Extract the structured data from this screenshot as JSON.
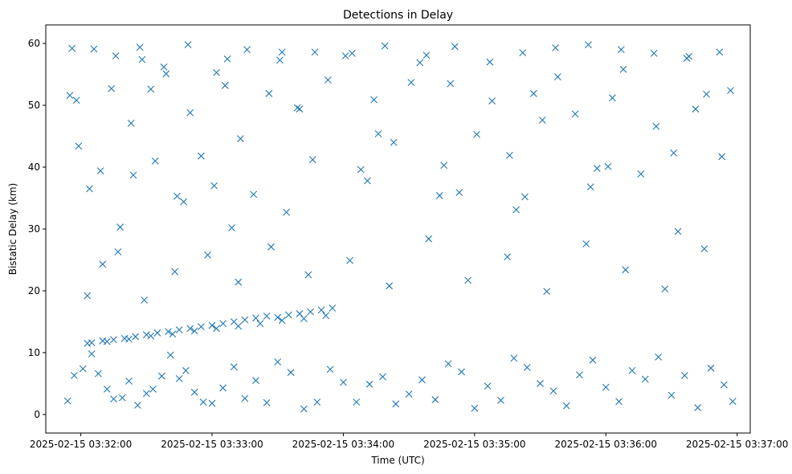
{
  "chart_data": {
    "type": "scatter",
    "title": "Detections in Delay",
    "xlabel": "Time (UTC)",
    "ylabel": "Bistatic Delay (km)",
    "x_ticks": [
      "2025-02-15 03:32:00",
      "2025-02-15 03:33:00",
      "2025-02-15 03:34:00",
      "2025-02-15 03:35:00",
      "2025-02-15 03:36:00",
      "2025-02-15 03:37:00"
    ],
    "y_ticks": [
      0,
      10,
      20,
      30,
      40,
      50,
      60
    ],
    "xlim": [
      "2025-02-15 03:31:44",
      "2025-02-15 03:37:06"
    ],
    "ylim": [
      -3,
      63
    ],
    "grid": false,
    "marker": "x",
    "marker_color": "#1f77b4",
    "series": [
      {
        "x": [
          "2025-02-15 03:31:54",
          "2025-02-15 03:31:57",
          "2025-02-15 03:32:01",
          "2025-02-15 03:32:05",
          "2025-02-15 03:32:08",
          "2025-02-15 03:32:12",
          "2025-02-15 03:32:15",
          "2025-02-15 03:32:19",
          "2025-02-15 03:32:22",
          "2025-02-15 03:32:26",
          "2025-02-15 03:32:30",
          "2025-02-15 03:32:33",
          "2025-02-15 03:32:37",
          "2025-02-15 03:32:41",
          "2025-02-15 03:32:45",
          "2025-02-15 03:32:48",
          "2025-02-15 03:32:52",
          "2025-02-15 03:32:56",
          "2025-02-15 03:33:00",
          "2025-02-15 03:33:05",
          "2025-02-15 03:33:10",
          "2025-02-15 03:33:15",
          "2025-02-15 03:33:20",
          "2025-02-15 03:33:25",
          "2025-02-15 03:33:30",
          "2025-02-15 03:33:36",
          "2025-02-15 03:33:42",
          "2025-02-15 03:33:48",
          "2025-02-15 03:33:54",
          "2025-02-15 03:34:00",
          "2025-02-15 03:34:06",
          "2025-02-15 03:34:12",
          "2025-02-15 03:34:18",
          "2025-02-15 03:34:24",
          "2025-02-15 03:34:30",
          "2025-02-15 03:34:36",
          "2025-02-15 03:34:42",
          "2025-02-15 03:34:48",
          "2025-02-15 03:34:54",
          "2025-02-15 03:35:00",
          "2025-02-15 03:35:06",
          "2025-02-15 03:35:12",
          "2025-02-15 03:35:18",
          "2025-02-15 03:35:24",
          "2025-02-15 03:35:30",
          "2025-02-15 03:35:36",
          "2025-02-15 03:35:42",
          "2025-02-15 03:35:48",
          "2025-02-15 03:35:54",
          "2025-02-15 03:36:00",
          "2025-02-15 03:36:06",
          "2025-02-15 03:36:12",
          "2025-02-15 03:36:18",
          "2025-02-15 03:36:24",
          "2025-02-15 03:36:30",
          "2025-02-15 03:36:36",
          "2025-02-15 03:36:42",
          "2025-02-15 03:36:48",
          "2025-02-15 03:36:54",
          "2025-02-15 03:36:58",
          "2025-02-15 03:32:03",
          "2025-02-15 03:32:17",
          "2025-02-15 03:32:29",
          "2025-02-15 03:32:43",
          "2025-02-15 03:32:58",
          "2025-02-15 03:33:12",
          "2025-02-15 03:33:27",
          "2025-02-15 03:33:44",
          "2025-02-15 03:34:03",
          "2025-02-15 03:34:21",
          "2025-02-15 03:34:39",
          "2025-02-15 03:34:57",
          "2025-02-15 03:35:15",
          "2025-02-15 03:35:33",
          "2025-02-15 03:35:51",
          "2025-02-15 03:36:09",
          "2025-02-15 03:36:27",
          "2025-02-15 03:36:45",
          "2025-02-15 03:31:55",
          "2025-02-15 03:31:59",
          "2025-02-15 03:32:04",
          "2025-02-15 03:32:09",
          "2025-02-15 03:32:14",
          "2025-02-15 03:32:18",
          "2025-02-15 03:32:23",
          "2025-02-15 03:32:28",
          "2025-02-15 03:32:34",
          "2025-02-15 03:32:39",
          "2025-02-15 03:32:44",
          "2025-02-15 03:32:50",
          "2025-02-15 03:32:55",
          "2025-02-15 03:33:01",
          "2025-02-15 03:33:07",
          "2025-02-15 03:33:13",
          "2025-02-15 03:33:19",
          "2025-02-15 03:33:26",
          "2025-02-15 03:33:32",
          "2025-02-15 03:33:39",
          "2025-02-15 03:33:46",
          "2025-02-15 03:33:53",
          "2025-02-15 03:34:01",
          "2025-02-15 03:34:08",
          "2025-02-15 03:34:16",
          "2025-02-15 03:34:23",
          "2025-02-15 03:34:31",
          "2025-02-15 03:34:38",
          "2025-02-15 03:34:46",
          "2025-02-15 03:34:53",
          "2025-02-15 03:35:01",
          "2025-02-15 03:35:08",
          "2025-02-15 03:35:16",
          "2025-02-15 03:35:23",
          "2025-02-15 03:35:31",
          "2025-02-15 03:35:38",
          "2025-02-15 03:35:46",
          "2025-02-15 03:35:53",
          "2025-02-15 03:36:01",
          "2025-02-15 03:36:08",
          "2025-02-15 03:36:16",
          "2025-02-15 03:36:23",
          "2025-02-15 03:36:31",
          "2025-02-15 03:36:38",
          "2025-02-15 03:36:46",
          "2025-02-15 03:36:53",
          "2025-02-15 03:31:56",
          "2025-02-15 03:32:06",
          "2025-02-15 03:32:16",
          "2025-02-15 03:32:27",
          "2025-02-15 03:32:38",
          "2025-02-15 03:32:49",
          "2025-02-15 03:33:02",
          "2025-02-15 03:33:16",
          "2025-02-15 03:33:31",
          "2025-02-15 03:33:47",
          "2025-02-15 03:34:04",
          "2025-02-15 03:34:19",
          "2025-02-15 03:34:35",
          "2025-02-15 03:34:51",
          "2025-02-15 03:35:07",
          "2025-02-15 03:35:22",
          "2025-02-15 03:35:37",
          "2025-02-15 03:35:52",
          "2025-02-15 03:36:07",
          "2025-02-15 03:36:22",
          "2025-02-15 03:36:37",
          "2025-02-15 03:36:52",
          "2025-02-15 03:32:10",
          "2025-02-15 03:32:24",
          "2025-02-15 03:32:47",
          "2025-02-15 03:33:09",
          "2025-02-15 03:33:34",
          "2025-02-15 03:34:11",
          "2025-02-15 03:34:44",
          "2025-02-15 03:35:19",
          "2025-02-15 03:35:56",
          "2025-02-15 03:36:33",
          "2025-02-15 03:31:58",
          "2025-02-15 03:32:32",
          "2025-02-15 03:33:06",
          "2025-02-15 03:33:40",
          "2025-02-15 03:34:14",
          "2025-02-15 03:34:49",
          "2025-02-15 03:35:27",
          "2025-02-15 03:36:03",
          "2025-02-15 03:36:41",
          "2025-02-15 03:36:57"
        ],
        "y": [
          2.2,
          6.3,
          7.4,
          9.8,
          6.6,
          4.1,
          2.5,
          2.7,
          5.4,
          1.5,
          3.4,
          4.1,
          6.2,
          9.6,
          5.8,
          7.1,
          3.6,
          2.0,
          1.8,
          4.3,
          7.7,
          2.6,
          5.5,
          1.9,
          8.5,
          6.8,
          0.9,
          2.0,
          7.3,
          5.2,
          2.0,
          4.9,
          6.1,
          1.7,
          3.3,
          5.6,
          2.4,
          8.2,
          6.9,
          1.0,
          4.6,
          2.3,
          9.1,
          7.6,
          5.0,
          3.8,
          1.4,
          6.4,
          8.8,
          4.4,
          2.1,
          7.1,
          5.7,
          9.3,
          3.1,
          6.3,
          1.1,
          7.5,
          4.8,
          2.1,
          19.2,
          26.3,
          18.5,
          23.1,
          25.8,
          21.4,
          27.1,
          22.6,
          24.9,
          20.8,
          28.4,
          21.7,
          25.5,
          19.9,
          27.6,
          23.4,
          20.3,
          26.8,
          51.6,
          43.4,
          36.5,
          39.4,
          52.7,
          30.3,
          47.1,
          57.4,
          41.0,
          55.1,
          35.3,
          48.8,
          41.8,
          37.0,
          57.5,
          44.6,
          35.6,
          51.9,
          58.6,
          49.6,
          41.2,
          54.1,
          58.0,
          39.6,
          45.4,
          44.0,
          53.7,
          58.1,
          40.3,
          35.9,
          45.3,
          50.7,
          41.9,
          35.2,
          47.6,
          54.6,
          48.6,
          36.8,
          40.1,
          55.8,
          38.9,
          46.6,
          42.3,
          57.9,
          51.8,
          41.7,
          59.2,
          59.1,
          58.0,
          59.4,
          56.2,
          59.8,
          55.3,
          59.0,
          57.3,
          58.6,
          58.4,
          59.6,
          56.9,
          59.5,
          57.0,
          58.5,
          59.3,
          59.8,
          59.0,
          58.4,
          57.6,
          58.6,
          24.3,
          38.7,
          34.4,
          30.2,
          32.7,
          37.8,
          35.4,
          33.1,
          39.8,
          29.6,
          50.8,
          52.6,
          53.2,
          49.4,
          50.9,
          53.5,
          51.9,
          51.2,
          49.4,
          52.4
        ]
      },
      {
        "x": [
          "2025-02-15 03:32:05",
          "2025-02-15 03:32:10",
          "2025-02-15 03:32:15",
          "2025-02-15 03:32:20",
          "2025-02-15 03:32:25",
          "2025-02-15 03:32:30",
          "2025-02-15 03:32:35",
          "2025-02-15 03:32:40",
          "2025-02-15 03:32:45",
          "2025-02-15 03:32:50",
          "2025-02-15 03:32:55",
          "2025-02-15 03:33:00",
          "2025-02-15 03:33:05",
          "2025-02-15 03:33:10",
          "2025-02-15 03:33:15",
          "2025-02-15 03:33:20",
          "2025-02-15 03:33:25",
          "2025-02-15 03:33:30",
          "2025-02-15 03:33:35",
          "2025-02-15 03:33:40",
          "2025-02-15 03:33:45",
          "2025-02-15 03:33:50",
          "2025-02-15 03:33:55",
          "2025-02-15 03:32:03",
          "2025-02-15 03:32:12",
          "2025-02-15 03:32:22",
          "2025-02-15 03:32:32",
          "2025-02-15 03:32:42",
          "2025-02-15 03:32:52",
          "2025-02-15 03:33:02",
          "2025-02-15 03:33:12",
          "2025-02-15 03:33:22",
          "2025-02-15 03:33:32",
          "2025-02-15 03:33:42",
          "2025-02-15 03:33:52"
        ],
        "y": [
          11.6,
          11.9,
          12.1,
          12.3,
          12.6,
          12.9,
          13.2,
          13.4,
          13.7,
          13.9,
          14.2,
          14.4,
          14.7,
          15.0,
          15.3,
          15.6,
          15.9,
          15.7,
          16.1,
          16.3,
          16.6,
          16.9,
          17.2,
          11.5,
          11.8,
          12.2,
          12.7,
          13.0,
          13.5,
          13.9,
          14.3,
          14.7,
          15.2,
          15.5,
          16.0
        ]
      }
    ]
  }
}
